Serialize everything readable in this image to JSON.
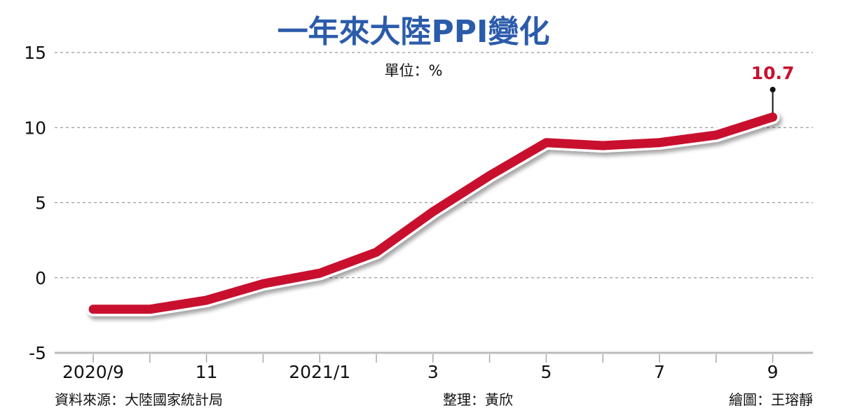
{
  "chart_data": {
    "type": "line",
    "title": "一年來大陸PPI變化",
    "unit_label": "單位：%",
    "x": [
      "2020/9",
      "2020/10",
      "2020/11",
      "2020/12",
      "2021/1",
      "2021/2",
      "2021/3",
      "2021/4",
      "2021/5",
      "2021/6",
      "2021/7",
      "2021/8",
      "2021/9"
    ],
    "x_tick_labels": [
      "2020/9",
      "",
      "11",
      "",
      "2021/1",
      "",
      "3",
      "",
      "5",
      "",
      "7",
      "",
      "9"
    ],
    "series": [
      {
        "name": "PPI",
        "values": [
          -2.1,
          -2.1,
          -1.5,
          -0.4,
          0.3,
          1.7,
          4.4,
          6.8,
          9.0,
          8.8,
          9.0,
          9.5,
          10.7
        ],
        "color": "#c8102e"
      }
    ],
    "ylim": [
      -5,
      15
    ],
    "y_ticks": [
      15,
      10,
      5,
      0,
      -5
    ],
    "grid": true,
    "annotation": {
      "label": "10.7",
      "index": 12
    },
    "xlabel": "",
    "ylabel": ""
  },
  "footer": {
    "source": "資料來源：大陸國家統計局",
    "editor": "整理：黃欣",
    "artist": "繪圖：王瑢靜"
  }
}
